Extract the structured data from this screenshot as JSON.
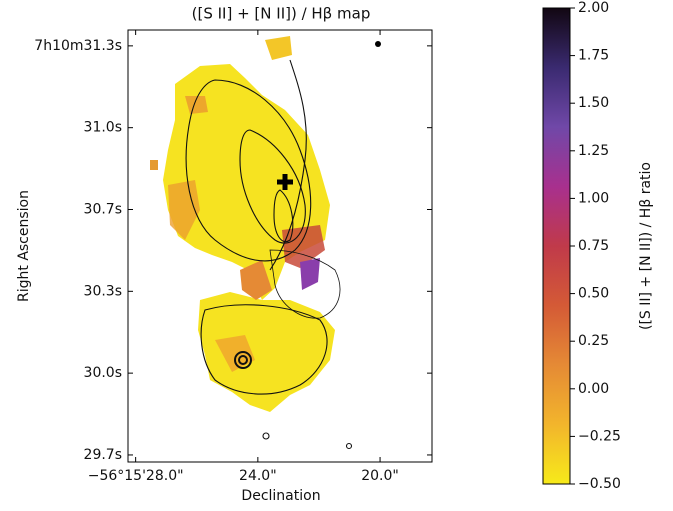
{
  "chart_data": {
    "type": "map",
    "title": "([S II] + [N II]) / Hβ map",
    "x_label": "Declination",
    "y_label": "Right Ascension",
    "xlim": [
      28.25,
      18.3
    ],
    "xticks": [
      {
        "value": 28.0,
        "label": "−56°15'28.0\""
      },
      {
        "value": 24.0,
        "label": "24.0\""
      },
      {
        "value": 20.0,
        "label": "20.0\""
      }
    ],
    "ylim": [
      29.647,
      31.363
    ],
    "yticks": [
      {
        "value": 31.3,
        "label": "7h10m31.3s"
      },
      {
        "value": 30.975,
        "label": "31.0s"
      },
      {
        "value": 30.65,
        "label": "30.7s"
      },
      {
        "value": 30.325,
        "label": "30.3s"
      },
      {
        "value": 30.0,
        "label": "30.0s"
      },
      {
        "value": 29.675,
        "label": "29.7s"
      }
    ],
    "colorbar": {
      "label": "([S II] + [N II]) / Hβ ratio",
      "lim": [
        -0.5,
        2.0
      ],
      "ticks": [
        {
          "value": -0.5,
          "label": "−0.50"
        },
        {
          "value": -0.25,
          "label": "−0.25"
        },
        {
          "value": 0,
          "label": "0.00"
        },
        0.25,
        {
          "value": 0.5,
          "label": "0.50"
        },
        0.75,
        {
          "value": 1.0,
          "label": "1.00"
        },
        1.25,
        {
          "value": 1.5,
          "label": "1.50"
        },
        1.75,
        {
          "value": 2.0,
          "label": "2.00"
        }
      ],
      "colormap": [
        "#f7ea1a",
        "#f2b52c",
        "#e58a35",
        "#d45a36",
        "#c03a4a",
        "#a8308e",
        "#7048a8",
        "#3a2a70",
        "#120712"
      ]
    }
  }
}
